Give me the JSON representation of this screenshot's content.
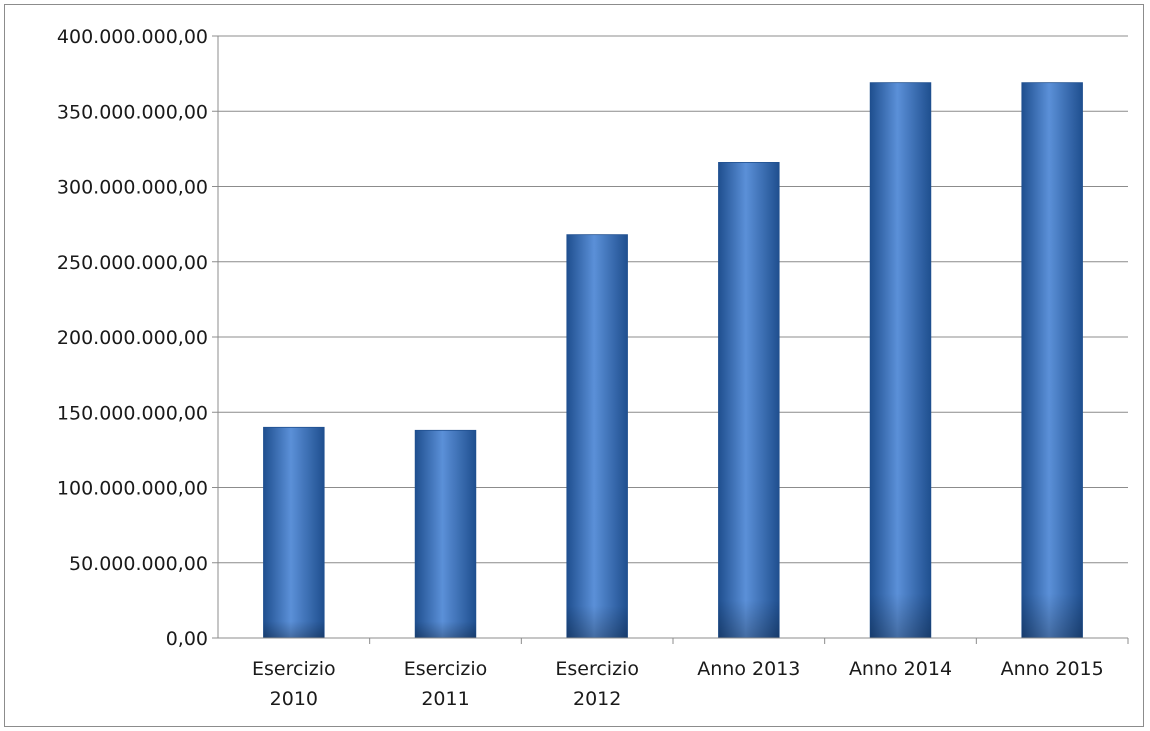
{
  "chart_data": {
    "type": "bar",
    "categories": [
      [
        "Esercizio",
        "2010"
      ],
      [
        "Esercizio",
        "2011"
      ],
      [
        "Esercizio",
        "2012"
      ],
      [
        "Anno 2013"
      ],
      [
        "Anno 2014"
      ],
      [
        "Anno 2015"
      ]
    ],
    "values": [
      140000000,
      138000000,
      268000000,
      316000000,
      369000000,
      369000000
    ],
    "y_ticks": [
      "0,00",
      "50.000.000,00",
      "100.000.000,00",
      "150.000.000,00",
      "200.000.000,00",
      "250.000.000,00",
      "300.000.000,00",
      "350.000.000,00",
      "400.000.000,00"
    ],
    "ylim": [
      0,
      400000000
    ],
    "grid": true,
    "legend": "none",
    "colors": {
      "bar_dark": "#1f4f8f",
      "bar_mid": "#3d76c4",
      "bar_light": "#5b90d8",
      "grid": "#8c8c8c",
      "axis": "#8c8c8c"
    }
  }
}
